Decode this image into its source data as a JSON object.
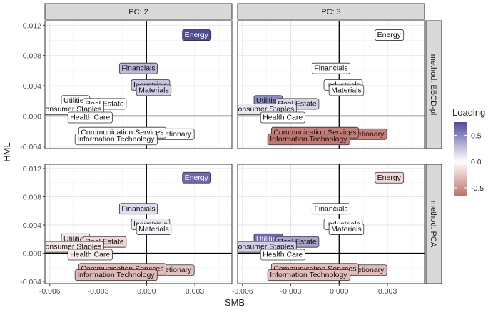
{
  "chart_data": {
    "type": "scatter",
    "subtype": "faceted-label-plot",
    "xlabel": "SMB",
    "ylabel": "HML",
    "xlim": [
      -0.0063,
      0.0053
    ],
    "ylim": [
      -0.0043,
      0.0126
    ],
    "x_ticks": [
      -0.006,
      -0.003,
      0.0,
      0.003
    ],
    "x_tick_labels": [
      "-0.006",
      "-0.003",
      "0.000",
      "0.003"
    ],
    "y_ticks": [
      -0.004,
      0.0,
      0.004,
      0.008,
      0.012
    ],
    "y_tick_labels": [
      "-0.004",
      "0.000",
      "0.004",
      "0.008",
      "0.012"
    ],
    "col_facets": [
      "PC: 2",
      "PC: 3"
    ],
    "row_facets": [
      "method: EBCD-pl",
      "method: PCA"
    ],
    "legend": {
      "title": "Loading",
      "position": "right",
      "range": [
        -0.65,
        0.75
      ],
      "ticks": [
        0.5,
        0.0,
        -0.5
      ],
      "tick_labels": [
        "0.5",
        "0.0",
        "-0.5"
      ],
      "low_color": "#c0706a",
      "mid_color": "#ffffff",
      "high_color": "#4f4a9c"
    },
    "points": [
      {
        "label": "Energy",
        "x": 0.0031,
        "y": 0.0108
      },
      {
        "label": "Financials",
        "x": -0.0005,
        "y": 0.0064
      },
      {
        "label": "Industrials",
        "x": 0.00025,
        "y": 0.0042
      },
      {
        "label": "Materials",
        "x": 0.00045,
        "y": 0.0035
      },
      {
        "label": "Utilities",
        "x": -0.0044,
        "y": 0.0021
      },
      {
        "label": "Real Estate",
        "x": -0.0026,
        "y": 0.0017
      },
      {
        "label": "Consumer Staples",
        "x": -0.0047,
        "y": 0.001
      },
      {
        "label": "Health Care",
        "x": -0.0035,
        "y": -0.0001
      },
      {
        "label": "Consumer Discretionary",
        "x": 0.0003,
        "y": -0.0023
      },
      {
        "label": "Communication Services",
        "x": -0.0015,
        "y": -0.0021
      },
      {
        "label": "Information Technology",
        "x": -0.0019,
        "y": -0.003
      }
    ],
    "panels": [
      {
        "row": 0,
        "col": 0,
        "loadings": [
          0.75,
          0.28,
          0.24,
          0.2,
          0.0,
          0.0,
          0.0,
          0.0,
          0.0,
          0.0,
          0.0
        ]
      },
      {
        "row": 0,
        "col": 1,
        "loadings": [
          0.0,
          0.0,
          0.0,
          0.0,
          0.48,
          0.18,
          0.1,
          0.0,
          -0.58,
          -0.58,
          -0.62
        ]
      },
      {
        "row": 1,
        "col": 0,
        "loadings": [
          0.62,
          0.14,
          0.1,
          0.04,
          -0.1,
          -0.18,
          -0.1,
          -0.08,
          -0.28,
          -0.3,
          -0.32
        ]
      },
      {
        "row": 1,
        "col": 1,
        "loadings": [
          -0.18,
          0.0,
          0.0,
          0.0,
          0.62,
          0.38,
          0.2,
          0.0,
          -0.3,
          -0.3,
          -0.3
        ]
      }
    ]
  }
}
